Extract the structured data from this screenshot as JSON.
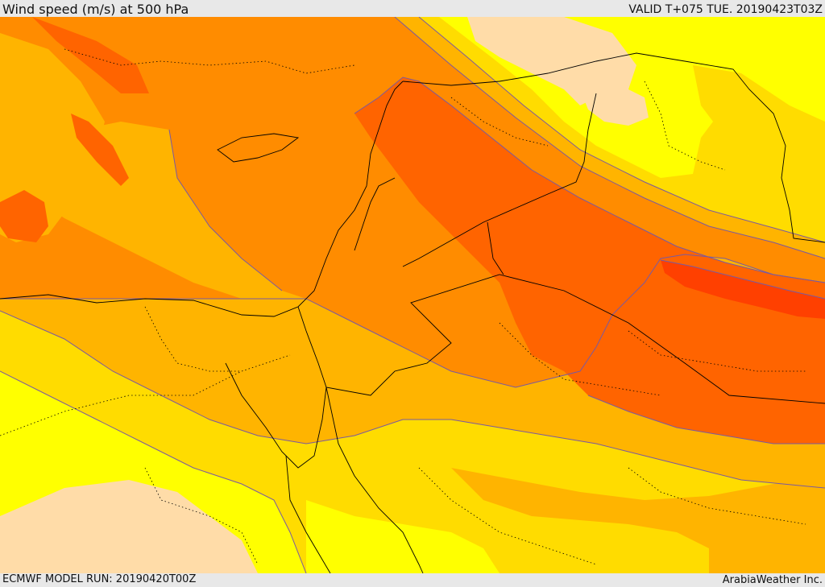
{
  "header": {
    "title": "Wind speed (m/s) at 500 hPa",
    "valid_time": "VALID T+075 TUE. 20190423T03Z"
  },
  "footer": {
    "model_run": "ECMWF MODEL RUN: 20190420T00Z",
    "credit": "ArabiaWeather Inc."
  },
  "colors": {
    "level_1": "#ffdca8",
    "level_2": "#ffff00",
    "level_3": "#ffdc00",
    "level_4": "#ffb400",
    "level_5": "#ff8c00",
    "level_6": "#ff6400",
    "level_7": "#ff4000",
    "contour": "#7a5aa0",
    "border": "#000000"
  }
}
